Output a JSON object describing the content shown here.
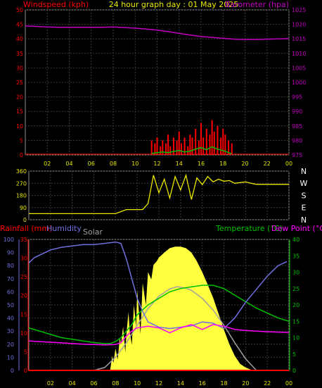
{
  "title": "24 hour graph day : 01 May 2025",
  "colors": {
    "windspeed": "#ff0000",
    "gust": "#ff0000",
    "avg_wind": "#00c000",
    "barometer": "#c000c0",
    "direction": "#e8e800",
    "rainfall": "#ff0000",
    "humidity": "#7070e0",
    "solar": "#a0a0a0",
    "solar_fill": "#ffff40",
    "temperature": "#00c000",
    "dewpoint": "#ff00ff",
    "grid": "#3a3a3a",
    "axis_text_x": "#e8e800",
    "dir_labels": "#ffffff"
  },
  "chart_data": [
    {
      "type": "line",
      "name": "wind-barometer",
      "title": "24 hour graph day : 01 May 2025",
      "ylabel_left": "Windspeed (kph)",
      "ylabel_right": "Barometer (hpa)",
      "x_ticks": [
        "02",
        "04",
        "06",
        "08",
        "10",
        "12",
        "14",
        "16",
        "18",
        "20",
        "22",
        "00"
      ],
      "xlim": [
        0,
        24
      ],
      "ylim_left": [
        0,
        50
      ],
      "ylim_right": [
        975,
        1025
      ],
      "y_ticks_left": [
        0,
        5,
        10,
        15,
        20,
        25,
        30,
        35,
        40,
        45,
        50
      ],
      "y_ticks_right": [
        975,
        980,
        985,
        990,
        995,
        1000,
        1005,
        1010,
        1015,
        1020,
        1025
      ],
      "grid": true,
      "barometer": {
        "x": [
          0,
          1,
          2,
          3,
          4,
          5,
          6,
          7,
          8,
          9,
          10,
          11,
          12,
          13,
          14,
          15,
          16,
          17,
          18,
          19,
          20,
          21,
          22,
          23,
          24
        ],
        "y": [
          1019.5,
          1019.3,
          1019.1,
          1019.0,
          1019.0,
          1019.0,
          1019.0,
          1019.0,
          1019.1,
          1018.9,
          1018.7,
          1018.4,
          1018.0,
          1017.5,
          1016.9,
          1016.3,
          1015.8,
          1015.5,
          1015.2,
          1014.9,
          1014.8,
          1014.8,
          1014.9,
          1015.0,
          1015.1
        ]
      },
      "gust": {
        "x": [
          11.5,
          11.8,
          12.0,
          12.3,
          12.5,
          12.8,
          13.0,
          13.2,
          13.5,
          13.8,
          14.0,
          14.2,
          14.5,
          14.8,
          15.0,
          15.2,
          15.5,
          15.8,
          16.0,
          16.2,
          16.5,
          16.8,
          17.0,
          17.2,
          17.5,
          17.8,
          18.0,
          18.2,
          18.5,
          18.8
        ],
        "y": [
          5,
          4,
          6,
          3,
          5,
          4,
          7,
          3,
          6,
          5,
          8,
          4,
          6,
          3,
          7,
          6,
          9,
          5,
          11,
          6,
          9,
          7,
          12,
          8,
          10,
          6,
          9,
          7,
          5,
          4
        ]
      },
      "avg_wind": {
        "x": [
          11.5,
          12.0,
          12.5,
          13.0,
          13.5,
          14.0,
          14.5,
          15.0,
          15.5,
          16.0,
          16.5,
          17.0,
          17.5,
          18.0,
          18.5,
          18.8
        ],
        "y": [
          0.5,
          0.8,
          1.0,
          0.8,
          1.2,
          1.5,
          1.0,
          1.3,
          2.0,
          2.5,
          1.8,
          2.8,
          2.0,
          1.5,
          0.8,
          0.4
        ]
      }
    },
    {
      "type": "line",
      "name": "wind-direction",
      "ylim": [
        0,
        360
      ],
      "y_ticks": [
        0,
        90,
        180,
        270,
        360
      ],
      "dir_labels": [
        "N",
        "W",
        "S",
        "E",
        "N"
      ],
      "xlim": [
        0,
        24
      ],
      "grid": true,
      "direction": {
        "x": [
          0,
          1,
          2,
          3,
          4,
          5,
          6,
          7,
          8,
          9,
          9.5,
          10,
          10.5,
          11,
          11.5,
          12,
          12.5,
          13,
          13.5,
          14,
          14.5,
          15,
          15.5,
          16,
          16.5,
          17,
          17.5,
          18,
          18.5,
          19,
          19.5,
          20,
          20.5,
          21,
          22,
          23,
          24
        ],
        "y": [
          45,
          45,
          45,
          45,
          45,
          45,
          45,
          45,
          45,
          75,
          75,
          75,
          75,
          120,
          330,
          200,
          300,
          160,
          320,
          220,
          330,
          150,
          310,
          260,
          320,
          280,
          300,
          285,
          290,
          270,
          275,
          280,
          270,
          262,
          262,
          262,
          262
        ]
      }
    },
    {
      "type": "line",
      "name": "rain-humidity-solar-temperature",
      "legend": [
        "Rainfall (mm)",
        "Humidity",
        "Solar",
        "Temperature (°C)",
        "Dew Point (°C)"
      ],
      "xlim": [
        0,
        24
      ],
      "x_ticks": [
        "02",
        "04",
        "06",
        "08",
        "10",
        "12",
        "14",
        "16",
        "18",
        "20",
        "22",
        "00"
      ],
      "humidity_scale": {
        "ylim": [
          0,
          100
        ],
        "y_ticks": [
          0,
          10,
          20,
          30,
          40,
          50,
          60,
          70,
          80,
          90,
          100
        ]
      },
      "rain_scale": {
        "ylim": [
          0,
          35
        ],
        "y_ticks": [
          0,
          5,
          10,
          15,
          20,
          25,
          30,
          35
        ]
      },
      "temperature_scale": {
        "ylim": [
          0,
          40
        ],
        "y_ticks": [
          0,
          5,
          10,
          15,
          20,
          25,
          30,
          35,
          40
        ]
      },
      "grid": true,
      "humidity": {
        "x": [
          0,
          0.5,
          1,
          2,
          3,
          4,
          5,
          6,
          7,
          8,
          8.5,
          9,
          9.5,
          10,
          10.5,
          11,
          12,
          13,
          14,
          15,
          16,
          17,
          18,
          19,
          20,
          21,
          22,
          23,
          23.8
        ],
        "y": [
          82,
          86,
          88,
          92,
          94,
          95,
          96,
          96,
          97,
          98,
          97,
          85,
          70,
          55,
          45,
          37,
          33,
          32,
          33,
          34,
          37,
          36,
          32,
          40,
          52,
          62,
          72,
          80,
          83
        ]
      },
      "temperature": {
        "x": [
          0,
          1,
          2,
          3,
          4,
          5,
          6,
          7,
          7.5,
          8,
          8.5,
          9,
          9.5,
          10,
          11,
          12,
          13,
          14,
          15,
          16,
          17,
          18,
          19,
          20,
          21,
          22,
          23,
          24
        ],
        "y": [
          13,
          12,
          11,
          10,
          9.5,
          9,
          8.5,
          8.2,
          8.2,
          8.8,
          10,
          12,
          14,
          17,
          20,
          22,
          24,
          25,
          25.5,
          26,
          26,
          25,
          23,
          21,
          19,
          17.5,
          16,
          15
        ]
      },
      "dewpoint": {
        "x": [
          0,
          1,
          2,
          3,
          4,
          5,
          6,
          7,
          8,
          8.5,
          9,
          9.5,
          10,
          11,
          12,
          13,
          14,
          15,
          16,
          17,
          18,
          19,
          20,
          21,
          22,
          23,
          24
        ],
        "y": [
          9,
          8.8,
          8.6,
          8.4,
          8.2,
          8.0,
          7.9,
          7.8,
          7.9,
          8.5,
          10.5,
          12,
          13,
          13.5,
          13,
          11.5,
          13,
          14,
          12.5,
          14,
          13.5,
          12.5,
          12.2,
          12.0,
          11.8,
          11.7,
          11.6
        ]
      },
      "solar": {
        "x": [
          6.0,
          7,
          8,
          9,
          10,
          11,
          12,
          13,
          13.7,
          14.5,
          15,
          16,
          17,
          18,
          19,
          20,
          21.0
        ],
        "y": [
          0,
          40,
          180,
          380,
          620,
          850,
          1020,
          1120,
          1150,
          1130,
          1100,
          990,
          830,
          620,
          380,
          160,
          0
        ],
        "ylim": [
          0,
          1800
        ]
      },
      "solar_measured": {
        "x": [
          7.5,
          7.7,
          7.8,
          8.0,
          8.2,
          8.4,
          8.5,
          8.7,
          8.9,
          9.0,
          9.2,
          9.3,
          9.5,
          9.7,
          9.9,
          10.0,
          10.3,
          10.5,
          10.8,
          11.0,
          11.3,
          11.5,
          11.8,
          12.0,
          12.5,
          13.0,
          13.5,
          14.0,
          14.5,
          15.0,
          15.5,
          16.0,
          16.5,
          17.0,
          17.5,
          18.0,
          18.5,
          19.0,
          19.5,
          20.0,
          20.5,
          20.8
        ],
        "y": [
          0,
          200,
          100,
          300,
          150,
          450,
          350,
          600,
          250,
          500,
          800,
          550,
          350,
          900,
          600,
          1100,
          500,
          1200,
          900,
          1350,
          1250,
          1450,
          1500,
          1550,
          1620,
          1680,
          1700,
          1700,
          1680,
          1620,
          1500,
          1350,
          1180,
          1000,
          780,
          560,
          360,
          200,
          90,
          40,
          10,
          0
        ]
      },
      "rainfall": {
        "x": [
          0,
          24
        ],
        "y": [
          0,
          0
        ]
      }
    }
  ]
}
